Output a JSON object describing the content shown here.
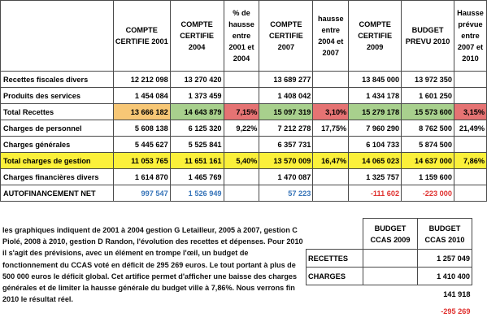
{
  "headers": {
    "label": "",
    "c2001": "COMPTE CERTIFIE 2001",
    "c2004": "COMPTE CERTIFIE 2004",
    "p0104": "% de hausse entre 2001 et 2004",
    "c2007": "COMPTE CERTIFIE 2007",
    "p0407": "hausse entre 2004 et 2007",
    "c2009": "COMPTE CERTIFIE 2009",
    "b2010": "BUDGET PREVU 2010",
    "p0710": "Hausse prévue entre 2007 et 2010"
  },
  "rows": [
    {
      "label": "Recettes fiscales divers",
      "c2001": "12 212 098",
      "c2004": "13 270 420",
      "p0104": "",
      "c2007": "13 689 277",
      "p0407": "",
      "c2009": "13 845 000",
      "b2010": "13 972 350",
      "p0710": ""
    },
    {
      "label": "Produits des services",
      "c2001": "1 454 084",
      "c2004": "1 373 459",
      "p0104": "",
      "c2007": "1 408 042",
      "p0407": "",
      "c2009": "1 434 178",
      "b2010": "1 601 250",
      "p0710": ""
    },
    {
      "label": "Total Recettes",
      "c2001": "13 666 182",
      "c2004": "14 643 879",
      "p0104": "7,15%",
      "c2007": "15 097 319",
      "p0407": "3,10%",
      "c2009": "15 279 178",
      "b2010": "15 573 600",
      "p0710": "3,15%"
    },
    {
      "label": "Charges de personnel",
      "c2001": "5 608 138",
      "c2004": "6 125 320",
      "p0104": "9,22%",
      "c2007": "7 212 278",
      "p0407": "17,75%",
      "c2009": "7 960 290",
      "b2010": "8 762 500",
      "p0710": "21,49%"
    },
    {
      "label": "Charges générales",
      "c2001": "5 445 627",
      "c2004": "5 525 841",
      "p0104": "",
      "c2007": "6 357 731",
      "p0407": "",
      "c2009": "6 104 733",
      "b2010": "5 874 500",
      "p0710": ""
    },
    {
      "label": "Total charges de gestion",
      "c2001": "11 053 765",
      "c2004": "11 651 161",
      "p0104": "5,40%",
      "c2007": "13 570 009",
      "p0407": "16,47%",
      "c2009": "14 065 023",
      "b2010": "14 637 000",
      "p0710": "7,86%"
    },
    {
      "label": "Charges financières divers",
      "c2001": "1 614 870",
      "c2004": "1 465 769",
      "p0104": "",
      "c2007": "1 470 087",
      "p0407": "",
      "c2009": "1 325 757",
      "b2010": "1 159 600",
      "p0710": ""
    },
    {
      "label": "AUTOFINANCEMENT NET",
      "c2001": "997 547",
      "c2004": "1 526 949",
      "p0104": "",
      "c2007": "57 223",
      "p0407": "",
      "c2009": "-111 602",
      "b2010": "-223 000",
      "p0710": ""
    }
  ],
  "notes": "les graphiques indiquent de 2001 à 2004 gestion G Letailleur, 2005 à 2007, gestion C Piolé, 2008 à 2010, gestion D Randon, l'évolution des recettes et dépenses. Pour 2010 il s'agit des prévisions, avec un élément en trompe l'œil, un budget de fonctionnement du CCAS voté en déficit de 295 269 euros. Le tout portant à plus de 500 000 euros le déficit global. Cet artifice permet d'afficher une baisse des charges générales et de limiter la hausse générale du budget ville à 7,86%. Nous verrons fin 2010 le résultat réel.",
  "ccas": {
    "h2009": "BUDGET CCAS 2009",
    "h2010": "BUDGET CCAS 2010",
    "recettes_label": "RECETTES",
    "recettes_2010": "1 257 049",
    "charges_label": "CHARGES",
    "charges_2010": "1 410 400",
    "diff_2010": "141 918",
    "deficit_2010": "-295 269"
  },
  "colors": {
    "gold": "#f7c776",
    "green": "#a8d08d",
    "red": "#e57373",
    "yellow": "#fbf03a",
    "blue": "#3573b8",
    "negative": "#e0312f"
  }
}
